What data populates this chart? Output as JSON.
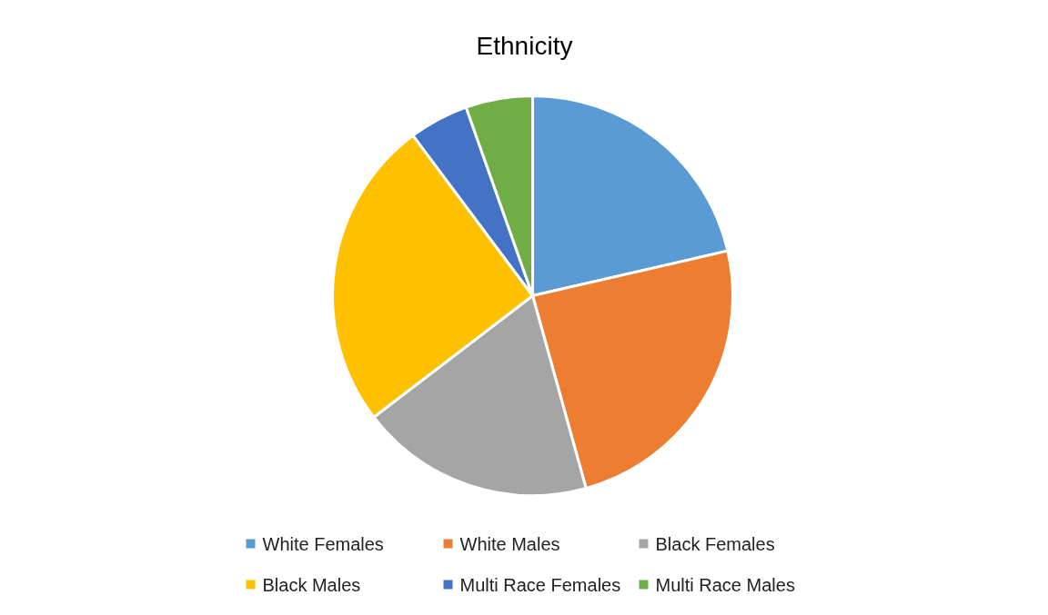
{
  "chart_data": {
    "type": "pie",
    "title": "Ethnicity",
    "categories": [
      "White Females",
      "White Males",
      "Black Females",
      "Black Males",
      "Multi Race Females",
      "Multi Race Males"
    ],
    "values": [
      21.4,
      24.3,
      18.9,
      25.2,
      4.8,
      5.4
    ],
    "colors": [
      "#5b9bd5",
      "#ed7d31",
      "#a5a5a5",
      "#ffc000",
      "#4472c4",
      "#70ad47"
    ],
    "legend": "bottom"
  }
}
